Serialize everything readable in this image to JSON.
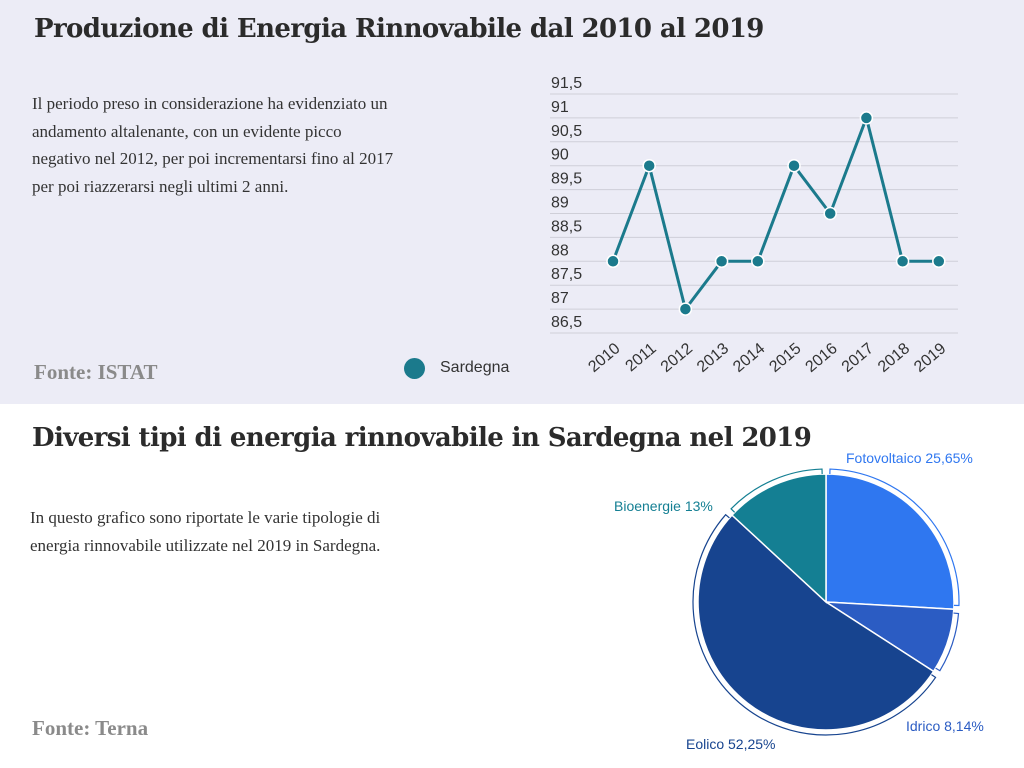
{
  "top": {
    "title": "Produzione di Energia Rinnovabile dal 2010 al 2019",
    "description": "Il periodo preso in considerazione ha evidenziato un andamento altalenante, con un evidente picco negativo nel 2012, per poi incrementarsi fino al 2017 per poi riazzerarsi negli ultimi 2 anni.",
    "source": "Fonte: ISTAT",
    "legend_label": "Sardegna"
  },
  "bottom": {
    "title": "Diversi tipi di energia rinnovabile in Sardegna nel 2019",
    "description": "In questo grafico sono riportate le varie tipologie di energia rinnovabile utilizzate nel 2019 in Sardegna.",
    "source": "Fonte: Terna"
  },
  "colors": {
    "line": "#1b7a8c",
    "grid": "#cfcfd8",
    "fotovoltaico": "#2f77f0",
    "idrico": "#2b5cc3",
    "eolico": "#17448f",
    "bioenergie": "#147f93"
  },
  "chart_data": [
    {
      "type": "line",
      "x": [
        "2010",
        "2011",
        "2012",
        "2013",
        "2014",
        "2015",
        "2016",
        "2017",
        "2018",
        "2019"
      ],
      "series": [
        {
          "name": "Sardegna",
          "values": [
            88,
            90,
            87,
            88,
            88,
            90,
            89,
            91,
            88,
            88
          ]
        }
      ],
      "yticks": [
        "91,5",
        "91",
        "90,5",
        "90",
        "89,5",
        "89",
        "88,5",
        "88",
        "87,5",
        "87",
        "86,5"
      ],
      "ylim": [
        86.5,
        91.5
      ],
      "grid": true,
      "legend": "bottom"
    },
    {
      "type": "pie",
      "slices": [
        {
          "label": "Fotovoltaico 25,65%",
          "value": 25.65,
          "color": "#2f77f0"
        },
        {
          "label": "Idrico 8,14%",
          "value": 8.14,
          "color": "#2b5cc3"
        },
        {
          "label": "Eolico 52,25%",
          "value": 52.25,
          "color": "#17448f"
        },
        {
          "label": "Bioenergie 13%",
          "value": 13,
          "color": "#147f93"
        }
      ]
    }
  ]
}
